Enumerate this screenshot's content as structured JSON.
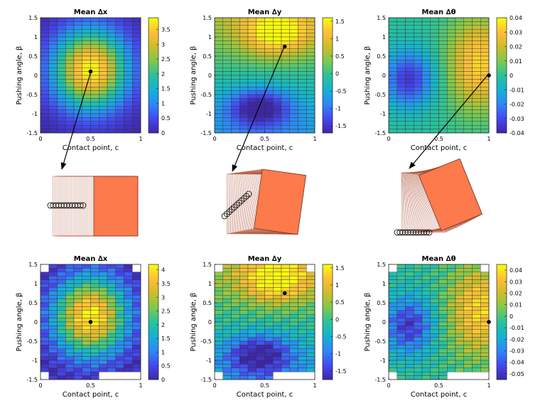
{
  "chart_data": [
    {
      "type": "heatmap",
      "row": "top",
      "title": "Mean ∆x",
      "xlabel": "Contact point, c",
      "ylabel": "Pushing angle, β",
      "xlim": [
        0,
        1
      ],
      "ylim": [
        -1.5,
        1.5
      ],
      "xticks": [
        "0",
        "0.5",
        "1"
      ],
      "yticks": [
        "-1.5",
        "-1",
        "-0.5",
        "0",
        "0.5",
        "1",
        "1.5"
      ],
      "clim": [
        0,
        3.9
      ],
      "colorbar_ticks": [
        "0",
        "0.5",
        "1",
        "1.5",
        "2",
        "2.5",
        "3",
        "3.5"
      ],
      "peak": {
        "c": 0.5,
        "beta": 0.1,
        "value": 3.9
      },
      "highlight_point": {
        "c": 0.5,
        "beta": 0.1
      }
    },
    {
      "type": "heatmap",
      "row": "top",
      "title": "Mean ∆y",
      "xlabel": "Contact point, c",
      "ylabel": "Pushing angle, β",
      "xlim": [
        0,
        1
      ],
      "ylim": [
        -1.5,
        1.5
      ],
      "xticks": [
        "0",
        "0.5",
        "1"
      ],
      "yticks": [
        "-1.5",
        "-1",
        "-0.5",
        "0",
        "0.5",
        "1",
        "1.5"
      ],
      "clim": [
        -1.7,
        1.6
      ],
      "colorbar_ticks": [
        "-1.5",
        "-1",
        "-0.5",
        "0",
        "0.5",
        "1",
        "1.5"
      ],
      "max_region": {
        "c": 0.6,
        "beta": 1.1,
        "value": 1.5
      },
      "min_region": {
        "c": 0.45,
        "beta": -0.85,
        "value": -1.6
      },
      "highlight_point": {
        "c": 0.7,
        "beta": 0.75
      }
    },
    {
      "type": "heatmap",
      "row": "top",
      "title": "Mean ∆θ",
      "xlabel": "Contact point, c",
      "ylabel": "Pushing angle, β",
      "xlim": [
        0,
        1
      ],
      "ylim": [
        -1.5,
        1.5
      ],
      "xticks": [
        "0",
        "0.5",
        "1"
      ],
      "yticks": [
        "-1.5",
        "-1",
        "-0.5",
        "0",
        "0.5",
        "1",
        "1.5"
      ],
      "clim": [
        -0.04,
        0.04
      ],
      "colorbar_ticks": [
        "-0.04",
        "-0.03",
        "-0.02",
        "-0.01",
        "0",
        "0.01",
        "0.02",
        "0.03",
        "0.04"
      ],
      "highlight_point": {
        "c": 1,
        "beta": 0
      }
    },
    {
      "type": "heatmap",
      "row": "bottom",
      "title": "Mean ∆x",
      "xlabel": "Contact point, c",
      "ylabel": "Pushing angle, β",
      "xlim": [
        0,
        1
      ],
      "ylim": [
        -1.5,
        1.5
      ],
      "xticks": [
        "0",
        "0.5",
        "1"
      ],
      "yticks": [
        "-1.5",
        "-1",
        "-0.5",
        "0",
        "0.5",
        "1",
        "1.5"
      ],
      "clim": [
        0,
        4.2
      ],
      "colorbar_ticks": [
        "0",
        "0.5",
        "1",
        "1.5",
        "2",
        "2.5",
        "3",
        "3.5",
        "4"
      ],
      "highlight_point": {
        "c": 0.5,
        "beta": 0
      }
    },
    {
      "type": "heatmap",
      "row": "bottom",
      "title": "Mean ∆y",
      "xlabel": "Contact point, c",
      "ylabel": "Pushing angle, β",
      "xlim": [
        0,
        1
      ],
      "ylim": [
        -1.5,
        1.5
      ],
      "xticks": [
        "0",
        "0.5",
        "1"
      ],
      "yticks": [
        "-1.5",
        "-1",
        "-0.5",
        "0",
        "0.5",
        "1",
        "1.5"
      ],
      "clim": [
        -1.75,
        1.6
      ],
      "colorbar_ticks": [
        "-1.5",
        "-1",
        "-0.5",
        "0",
        "0.5",
        "1",
        "1.5"
      ],
      "highlight_point": {
        "c": 0.7,
        "beta": 0.75
      }
    },
    {
      "type": "heatmap",
      "row": "bottom",
      "title": "Mean ∆θ",
      "xlabel": "Contact point, c",
      "ylabel": "Pushing angle, β",
      "xlim": [
        0,
        1
      ],
      "ylim": [
        -1.5,
        1.5
      ],
      "xticks": [
        "0",
        "0.5",
        "1"
      ],
      "yticks": [
        "-1.5",
        "-1",
        "-0.5",
        "0",
        "0.5",
        "1",
        "1.5"
      ],
      "clim": [
        -0.055,
        0.045
      ],
      "colorbar_ticks": [
        "-0.05",
        "-0.04",
        "-0.03",
        "-0.02",
        "-0.01",
        "0",
        "0.01",
        "0.02",
        "0.03",
        "0.04"
      ],
      "highlight_point": {
        "c": 1,
        "beta": 0
      }
    }
  ],
  "colors": {
    "parula": [
      "#3e26a8",
      "#4547f0",
      "#2e87f7",
      "#15b1d4",
      "#29c19b",
      "#7dc94e",
      "#cebc2c",
      "#fdbe3a",
      "#f9fb0e"
    ],
    "object_fill": "#fc7a4c",
    "object_edge": "#b0553e"
  }
}
